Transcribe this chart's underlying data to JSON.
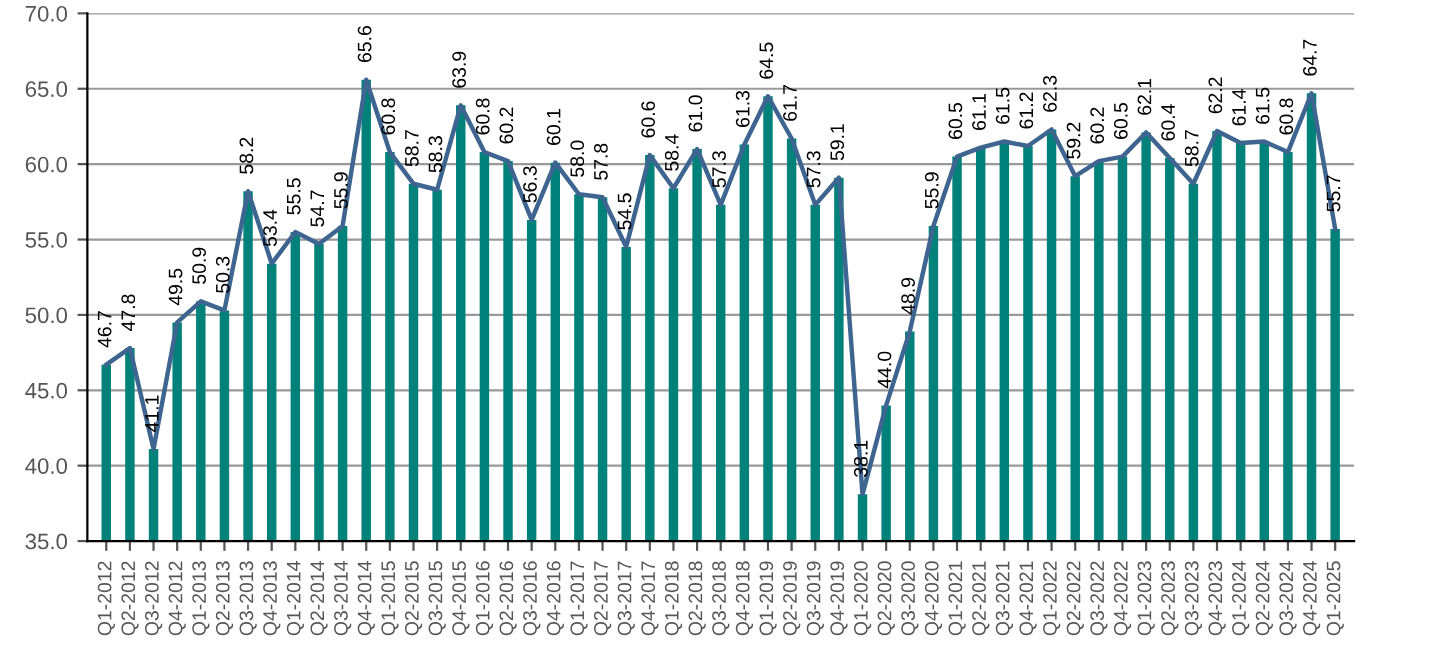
{
  "chart_data": {
    "type": "bar",
    "categories": [
      "Q1-2012",
      "Q2-2012",
      "Q3-2012",
      "Q4-2012",
      "Q1-2013",
      "Q2-2013",
      "Q3-2013",
      "Q4-2013",
      "Q1-2014",
      "Q2-2014",
      "Q3-2014",
      "Q4-2014",
      "Q1-2015",
      "Q2-2015",
      "Q3-2015",
      "Q4-2015",
      "Q1-2016",
      "Q2-2016",
      "Q3-2016",
      "Q4-2016",
      "Q1-2017",
      "Q2-2017",
      "Q3-2017",
      "Q4-2017",
      "Q1-2018",
      "Q2-2018",
      "Q3-2018",
      "Q4-2018",
      "Q1-2019",
      "Q2-2019",
      "Q3-2019",
      "Q4-2019",
      "Q1-2020",
      "Q2-2020",
      "Q3-2020",
      "Q4-2020",
      "Q1-2021",
      "Q2-2021",
      "Q3-2021",
      "Q4-2021",
      "Q1-2022",
      "Q2-2022",
      "Q3-2022",
      "Q4-2022",
      "Q1-2023",
      "Q2-2023",
      "Q3-2023",
      "Q4-2023",
      "Q1-2024",
      "Q2-2024",
      "Q3-2024",
      "Q4-2024",
      "Q1-2025"
    ],
    "series": [
      {
        "color": "#00827a",
        "values": [
          46.7,
          47.8,
          41.1,
          49.5,
          50.9,
          50.3,
          58.2,
          53.4,
          55.5,
          54.7,
          55.9,
          65.6,
          60.8,
          58.7,
          58.3,
          63.9,
          60.8,
          60.2,
          56.3,
          60.1,
          58.0,
          57.8,
          54.5,
          60.6,
          58.4,
          61.0,
          57.3,
          61.3,
          64.5,
          61.7,
          57.3,
          59.1,
          38.1,
          44.0,
          48.9,
          55.9,
          60.5,
          61.1,
          61.5,
          61.2,
          62.3,
          59.2,
          60.2,
          60.5,
          62.1,
          60.4,
          58.7,
          62.2,
          61.4,
          61.5,
          60.8,
          64.7,
          55.7
        ],
        "value_labels": [
          "46.7",
          "47.8",
          "41.1",
          "49.5",
          "50.9",
          "50.3",
          "58.2",
          "53.4",
          "55.5",
          "54.7",
          "55.9",
          "65.6",
          "60.8",
          "58.7",
          "58.3",
          "63.9",
          "60.8",
          "60.2",
          "56.3",
          "60.1",
          "58.0",
          "57.8",
          "54.5",
          "60.6",
          "58.4",
          "61.0",
          "57.3",
          "61.3",
          "64.5",
          "61.7",
          "57.3",
          "59.1",
          "38.1",
          "44.0",
          "48.9",
          "55.9",
          "60.5",
          "61.1",
          "61.5",
          "61.2",
          "62.3",
          "59.2",
          "60.2",
          "60.5",
          "62.1",
          "60.4",
          "58.7",
          "62.2",
          "61.4",
          "61.5",
          "60.8",
          "64.7",
          "55.7"
        ]
      },
      {
        "type": "line",
        "color": "#3e6490",
        "values": [
          46.7,
          47.8,
          41.1,
          49.5,
          50.9,
          50.3,
          58.2,
          53.4,
          55.5,
          54.7,
          55.9,
          65.6,
          60.8,
          58.7,
          58.3,
          63.9,
          60.8,
          60.2,
          56.3,
          60.1,
          58.0,
          57.8,
          54.5,
          60.6,
          58.4,
          61.0,
          57.3,
          61.3,
          64.5,
          61.7,
          57.3,
          59.1,
          38.1,
          44.0,
          48.9,
          55.9,
          60.5,
          61.1,
          61.5,
          61.2,
          62.3,
          59.2,
          60.2,
          60.5,
          62.1,
          60.4,
          58.7,
          62.2,
          61.4,
          61.5,
          60.8,
          64.7,
          55.7
        ]
      }
    ],
    "ylim": [
      35,
      70
    ],
    "yticks": [
      {
        "value": 35,
        "label": "35.0"
      },
      {
        "value": 40,
        "label": "40.0"
      },
      {
        "value": 45,
        "label": "45.0"
      },
      {
        "value": 50,
        "label": "50.0"
      },
      {
        "value": 55,
        "label": "55.0"
      },
      {
        "value": 60,
        "label": "60.0"
      },
      {
        "value": 65,
        "label": "65.0"
      },
      {
        "value": 70,
        "label": "70.0"
      }
    ],
    "grid": "y",
    "marker": "none",
    "line_style": "solid",
    "legend": false
  }
}
